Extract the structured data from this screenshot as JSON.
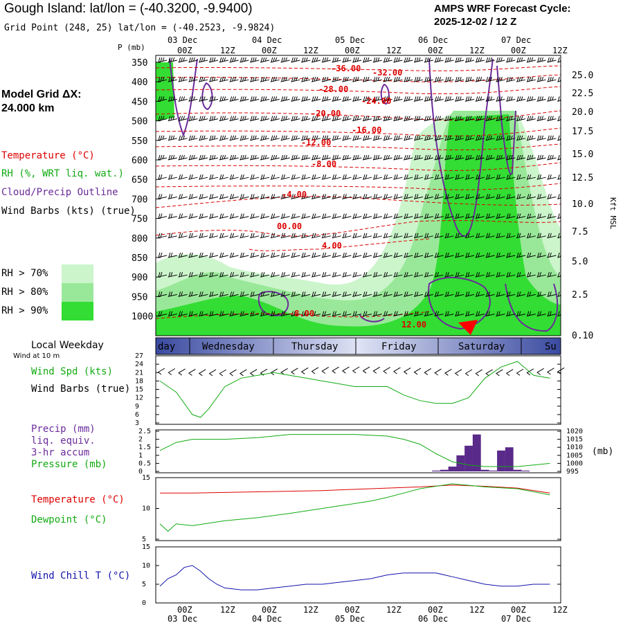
{
  "header": {
    "title": "Gough Island:  lat/lon = (-40.3200, -9.9400)",
    "subtitle": "Grid Point (248, 25) lat/lon = (-40.2523, -9.9824)",
    "cycle_line1": "AMPS WRF Forecast Cycle:",
    "cycle_line2": "2025-12-02 / 12  Z",
    "grid_line1": "Model Grid ΔX:",
    "grid_line2": " 24.000 km"
  },
  "colors": {
    "temperature": "#dd0000",
    "rh": "#11aa11",
    "cloud": "#6a2a9a",
    "windchill": "#1111aa",
    "rh70": "#ccf5cc",
    "rh80": "#99e899",
    "rh90": "#33dd33",
    "precip_bar": "#5a2a8a"
  },
  "legend": {
    "temperature": "Temperature (°C)",
    "rh": "RH (%, WRT liq. wat.)",
    "cloud": "Cloud/Precip Outline",
    "wind": "Wind Barbs (kts) (true)",
    "rh70": "RH > 70%",
    "rh80": "RH > 80%",
    "rh90": "RH > 90%"
  },
  "time_axis": {
    "top_hours": [
      "00Z",
      "12Z",
      "00Z",
      "12Z",
      "00Z",
      "12Z",
      "00Z",
      "12Z",
      "00Z",
      "12Z"
    ],
    "top_dates": [
      "03 Dec",
      "04 Dec",
      "05 Dec",
      "06 Dec",
      "07 Dec"
    ],
    "bottom_hours": [
      "00Z",
      "12Z",
      "00Z",
      "12Z",
      "00Z",
      "12Z",
      "00Z",
      "12Z",
      "00Z",
      "12Z"
    ],
    "bottom_dates": [
      "03 Dec",
      "04 Dec",
      "05 Dec",
      "06 Dec",
      "07 Dec"
    ]
  },
  "weekday_bar": {
    "label": "Local Weekday",
    "days": [
      "day",
      "Wednesday",
      "Thursday",
      "Friday",
      "Saturday",
      "Su"
    ]
  },
  "chart_data": [
    {
      "type": "heatmap",
      "name": "cross-section",
      "ylabel": "P (mb)",
      "yticks": [
        "350",
        "400",
        "450",
        "500",
        "550",
        "600",
        "650",
        "700",
        "750",
        "800",
        "850",
        "900",
        "950",
        "1000"
      ],
      "right_axis_label": "Kft MSL",
      "right_ticks": [
        "25.0",
        "22.5",
        "20.0",
        "17.5",
        "15.0",
        "12.5",
        "10.0",
        "7.5",
        "5.0",
        "2.5",
        "0.10"
      ],
      "temperature_contours": [
        "-36.00",
        "-32.00",
        "-28.00",
        "-24.00",
        "-20.00",
        "-16.00",
        "-12.00",
        "-8.00",
        "-4.00",
        "00.00",
        "4.00",
        "8.00",
        "12.00"
      ]
    },
    {
      "type": "line",
      "name": "wind-speed",
      "subtitle": "Wind at 10 m",
      "label": "Wind Spd (kts)",
      "label2": "Wind Barbs (true)",
      "ylim": [
        3,
        27
      ],
      "yticks": [
        "27",
        "24",
        "21",
        "18",
        "15",
        "12",
        "9",
        "6",
        "3"
      ],
      "x_hours": [
        0,
        3,
        6,
        9,
        12,
        15,
        18,
        21,
        24,
        30,
        36,
        42,
        48,
        54,
        60,
        66,
        72,
        78,
        84,
        90,
        96,
        102,
        108,
        114,
        120,
        126,
        132,
        138,
        144
      ],
      "values": [
        18,
        16,
        14,
        10,
        6,
        5,
        8,
        12,
        16,
        19,
        20,
        21,
        20,
        19,
        18,
        17,
        16,
        16,
        16,
        13,
        11,
        10,
        10,
        12,
        19,
        23,
        25,
        20,
        19
      ]
    },
    {
      "type": "bar",
      "name": "precip-pressure",
      "label": "Precip (mm)",
      "label2": "liq. equiv.",
      "label3": "3-hr accum",
      "label4": "Pressure (mb)",
      "left_ticks": [
        "2.5",
        "2",
        "1.5",
        "1",
        "0.5",
        "0"
      ],
      "right_ticks": [
        "1020",
        "1015",
        "1010",
        "1005",
        "1000",
        "995"
      ],
      "right_unit": "(mb)",
      "ylim_precip": [
        0,
        2.5
      ],
      "ylim_pressure": [
        995,
        1020
      ],
      "precip_hours": [
        102,
        105,
        108,
        111,
        114,
        117,
        120,
        123,
        126,
        129,
        132,
        135
      ],
      "precip_values": [
        0.05,
        0.1,
        0.3,
        1.0,
        1.6,
        2.3,
        0.1,
        0.05,
        1.3,
        1.5,
        0.1,
        0.05
      ],
      "pressure_hours": [
        0,
        6,
        12,
        18,
        24,
        36,
        48,
        60,
        72,
        84,
        90,
        96,
        102,
        108,
        114,
        120,
        126,
        132,
        138,
        144
      ],
      "pressure_values": [
        1008,
        1013,
        1015,
        1015,
        1015,
        1016,
        1018,
        1018,
        1018,
        1017,
        1015,
        1012,
        1006,
        1001,
        999,
        998,
        998,
        998,
        999,
        1000
      ]
    },
    {
      "type": "line",
      "name": "temperature-dewpoint",
      "series": [
        {
          "name": "Temperature (°C)",
          "values": [
            12.5,
            12.5,
            12.5,
            12.5,
            12.6,
            12.7,
            12.8,
            12.9,
            13.0,
            13.1,
            13.2,
            13.3,
            13.4,
            13.5,
            13.8,
            13.6,
            13.3,
            12.5
          ]
        },
        {
          "name": "Dewpoint (°C)",
          "values": [
            7.5,
            6.3,
            7.5,
            7.2,
            8.0,
            8.5,
            9.2,
            10.0,
            10.4,
            10.8,
            11.2,
            11.8,
            12.5,
            13.2,
            14.0,
            13.5,
            13.2,
            12.2
          ]
        }
      ],
      "x_hours": [
        0,
        3,
        6,
        12,
        24,
        36,
        48,
        60,
        66,
        72,
        78,
        84,
        90,
        96,
        108,
        120,
        132,
        144
      ],
      "ylim": [
        5,
        15
      ],
      "yticks": [
        "15",
        "10",
        "5"
      ]
    },
    {
      "type": "line",
      "name": "wind-chill",
      "label": "Wind Chill T (°C)",
      "ylim": [
        0,
        15
      ],
      "yticks": [
        "15",
        "10",
        "5",
        "0"
      ],
      "x_hours": [
        0,
        3,
        6,
        9,
        12,
        15,
        18,
        21,
        24,
        30,
        36,
        42,
        48,
        54,
        60,
        66,
        72,
        78,
        84,
        90,
        96,
        102,
        108,
        114,
        120,
        126,
        132,
        138,
        144
      ],
      "values": [
        4.5,
        6.5,
        7.5,
        9.5,
        10.0,
        8.5,
        6.5,
        5.0,
        4.0,
        3.5,
        3.5,
        4.0,
        4.5,
        5.0,
        5.0,
        5.5,
        6.0,
        6.5,
        7.5,
        8.0,
        8.0,
        8.0,
        7.0,
        6.0,
        5.0,
        4.5,
        4.5,
        5.0,
        5.0
      ]
    }
  ]
}
